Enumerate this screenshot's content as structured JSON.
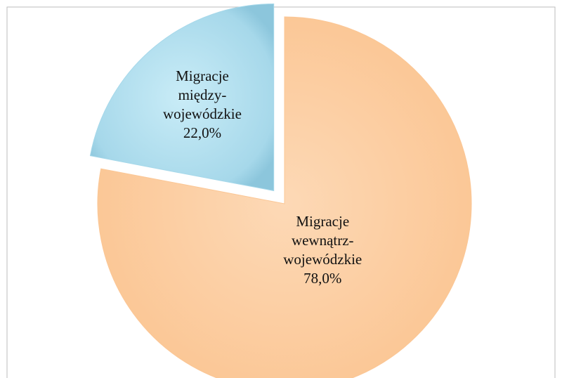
{
  "chart_data": {
    "type": "pie",
    "categories": [
      "Migracje między-wojewódzkie",
      "Migracje wewnątrz-wojewódzkie"
    ],
    "values": [
      22.0,
      78.0
    ],
    "value_labels": [
      "22,0%",
      "78,0%"
    ],
    "colors": [
      "#a6d8ea",
      "#fbc796"
    ],
    "exploded": [
      true,
      false
    ]
  }
}
